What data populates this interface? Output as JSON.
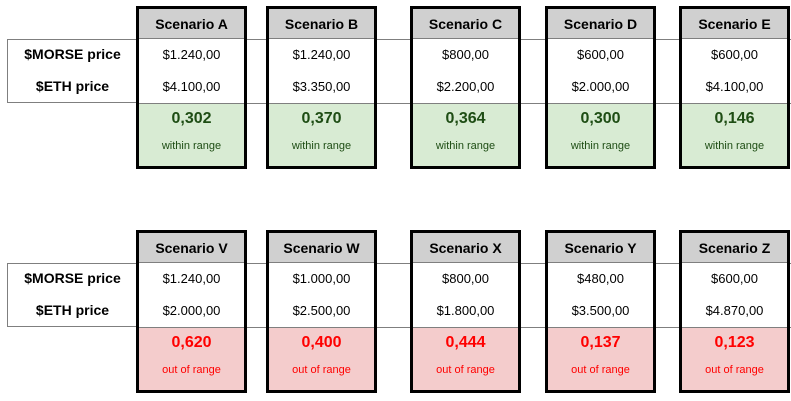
{
  "row_labels": {
    "morse": "$MORSE price",
    "eth": "$ETH price"
  },
  "status": {
    "green": "#d8ebd3",
    "red": "#f4cccc"
  },
  "top": [
    {
      "name": "Scenario A",
      "morse": "$1.240,00",
      "eth": "$4.100,00",
      "ratio": "0,302",
      "status": "within range"
    },
    {
      "name": "Scenario B",
      "morse": "$1.240,00",
      "eth": "$3.350,00",
      "ratio": "0,370",
      "status": "within range"
    },
    {
      "name": "Scenario C",
      "morse": "$800,00",
      "eth": "$2.200,00",
      "ratio": "0,364",
      "status": "within range"
    },
    {
      "name": "Scenario D",
      "morse": "$600,00",
      "eth": "$2.000,00",
      "ratio": "0,300",
      "status": "within range"
    },
    {
      "name": "Scenario E",
      "morse": "$600,00",
      "eth": "$4.100,00",
      "ratio": "0,146",
      "status": "within range"
    }
  ],
  "bottom": [
    {
      "name": "Scenario V",
      "morse": "$1.240,00",
      "eth": "$2.000,00",
      "ratio": "0,620",
      "status": "out of range"
    },
    {
      "name": "Scenario W",
      "morse": "$1.000,00",
      "eth": "$2.500,00",
      "ratio": "0,400",
      "status": "out of range"
    },
    {
      "name": "Scenario X",
      "morse": "$800,00",
      "eth": "$1.800,00",
      "ratio": "0,444",
      "status": "out of range"
    },
    {
      "name": "Scenario Y",
      "morse": "$480,00",
      "eth": "$3.500,00",
      "ratio": "0,137",
      "status": "out of range"
    },
    {
      "name": "Scenario Z",
      "morse": "$600,00",
      "eth": "$4.870,00",
      "ratio": "0,123",
      "status": "out of range"
    }
  ]
}
